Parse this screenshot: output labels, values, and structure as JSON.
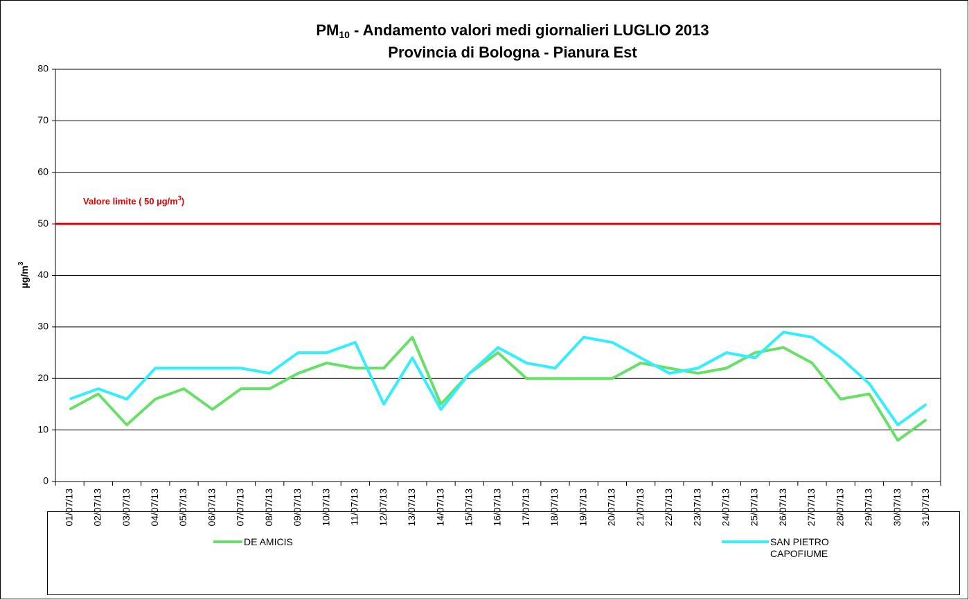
{
  "chart_data": {
    "type": "line",
    "title": {
      "main": "PM",
      "sub": "10",
      "rest": " - Andamento valori medi giornalieri LUGLIO 2013"
    },
    "subtitle": "Provincia di Bologna - Pianura Est",
    "y_label": {
      "main": "µg/m",
      "sup": "3"
    },
    "categories": [
      "01/07/13",
      "02/07/13",
      "03/07/13",
      "04/07/13",
      "05/07/13",
      "06/07/13",
      "07/07/13",
      "08/07/13",
      "09/07/13",
      "10/07/13",
      "11/07/13",
      "12/07/13",
      "13/07/13",
      "14/07/13",
      "15/07/13",
      "16/07/13",
      "17/07/13",
      "18/07/13",
      "19/07/13",
      "20/07/13",
      "21/07/13",
      "22/07/13",
      "23/07/13",
      "24/07/13",
      "25/07/13",
      "26/07/13",
      "27/07/13",
      "28/07/13",
      "29/07/13",
      "30/07/13",
      "31/07/13"
    ],
    "series": [
      {
        "name": "DE AMICIS",
        "color": "#66e066",
        "values": [
          14,
          17,
          11,
          16,
          18,
          14,
          18,
          18,
          21,
          23,
          22,
          22,
          28,
          15,
          21,
          25,
          20,
          20,
          20,
          20,
          23,
          22,
          21,
          22,
          25,
          26,
          23,
          16,
          17,
          8,
          12
        ]
      },
      {
        "name": "SAN PIETRO CAPOFIUME",
        "color": "#33eeff",
        "values": [
          16,
          18,
          16,
          22,
          22,
          22,
          22,
          21,
          25,
          25,
          27,
          15,
          24,
          14,
          21,
          26,
          23,
          22,
          28,
          27,
          24,
          21,
          22,
          25,
          24,
          29,
          28,
          24,
          19,
          11,
          15
        ]
      }
    ],
    "limit": {
      "value": 50,
      "color": "#e00000",
      "label": {
        "main": "Valore limite  ( 50 µg/m",
        "sup": "3",
        "end": ")"
      }
    },
    "ylim": [
      0,
      80
    ],
    "yticks": [
      0,
      10,
      20,
      30,
      40,
      50,
      60,
      70,
      80
    ],
    "grid": true
  }
}
